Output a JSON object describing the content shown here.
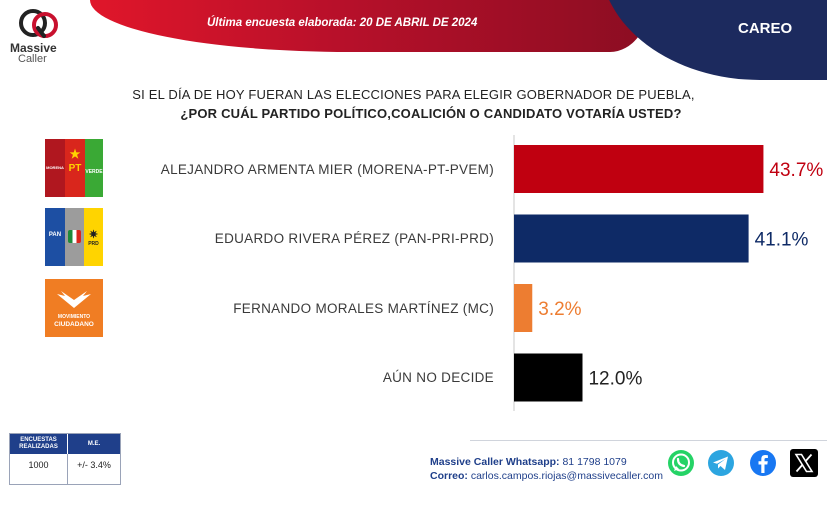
{
  "header": {
    "banner_text": "Última encuesta elaborada:  20 DE ABRIL DE 2024",
    "section": "CAREO",
    "logo_line1": "Massive",
    "logo_line2": "Caller"
  },
  "question": {
    "line1": "SI EL DÍA DE HOY FUERAN LAS ELECCIONES PARA ELEGIR GOBERNADOR DE PUEBLA,",
    "line2": "¿POR CUÁL PARTIDO POLÍTICO,COALICIÓN  O CANDIDATO VOTARÍA USTED?"
  },
  "party_logos": {
    "morena_pt_pvem": {
      "pt": "PT",
      "verde": "VERDE"
    },
    "pan_pri_prd": {
      "pan": "PAN",
      "pri": "PRI",
      "prd": "PRD"
    },
    "mc": {
      "line1": "MOVIMIENTO",
      "line2": "CIUDADANO"
    }
  },
  "chart_data": {
    "type": "bar",
    "orientation": "horizontal",
    "categories": [
      "ALEJANDRO ARMENTA MIER (MORENA-PT-PVEM)",
      "EDUARDO RIVERA PÉREZ (PAN-PRI-PRD)",
      "FERNANDO MORALES MARTÍNEZ (MC)",
      "AÚN NO DECIDE"
    ],
    "values": [
      43.7,
      41.1,
      3.2,
      12.0
    ],
    "value_labels": [
      "43.7%",
      "41.1%",
      "3.2%",
      "12.0%"
    ],
    "colors": [
      "#c00010",
      "#0e2a66",
      "#ed7d31",
      "#000000"
    ],
    "label_colors": [
      "#c00010",
      "#0e2a66",
      "#ed7d31",
      "#222222"
    ],
    "xlim": [
      0,
      50
    ],
    "grid": false,
    "legend": "none"
  },
  "sample": {
    "col1_header": "ENCUESTAS REALIZADAS",
    "col2_header": "M.E.",
    "col1_value": "1000",
    "col2_value": "+/- 3.4%"
  },
  "contact": {
    "whatsapp_label": "Massive Caller Whatsapp:",
    "whatsapp_value": "81 1798 1079",
    "email_label": "Correo:",
    "email_value": "carlos.campos.riojas@massivecaller.com"
  },
  "social_icons": [
    "whatsapp-icon",
    "telegram-icon",
    "facebook-icon",
    "x-icon"
  ]
}
